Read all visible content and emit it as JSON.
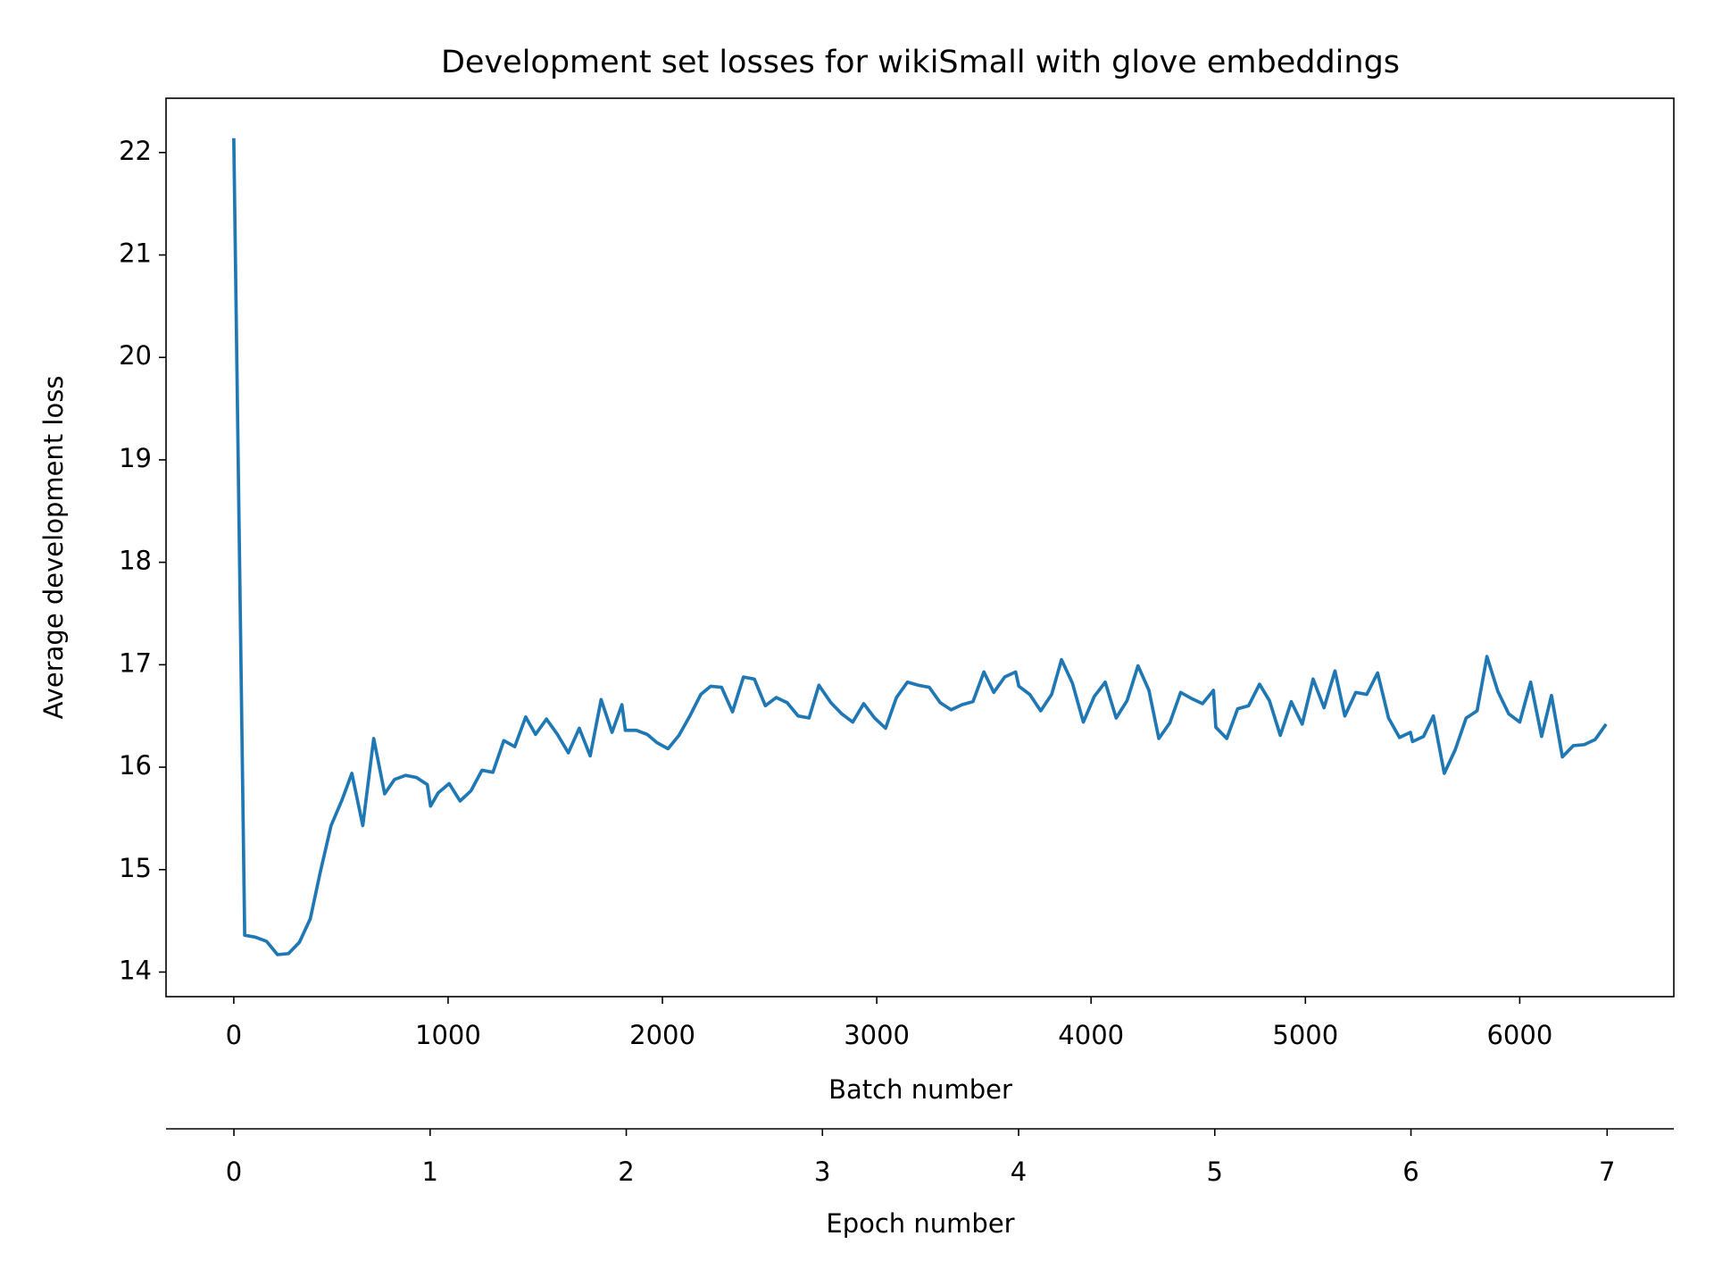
{
  "chart_data": {
    "type": "line",
    "title": "Development set losses for wikiSmall with glove embeddings",
    "x_label": "Batch number",
    "y_label": "Average development loss",
    "x2_label": "Epoch number",
    "x": [
      0,
      51,
      102,
      153,
      204,
      255,
      306,
      357,
      403,
      454,
      505,
      551,
      602,
      653,
      704,
      750,
      801,
      852,
      903,
      918,
      954,
      1005,
      1056,
      1107,
      1158,
      1209,
      1260,
      1311,
      1362,
      1408,
      1459,
      1510,
      1561,
      1612,
      1663,
      1714,
      1765,
      1811,
      1827,
      1878,
      1929,
      1974,
      2026,
      2077,
      2128,
      2179,
      2225,
      2276,
      2327,
      2378,
      2429,
      2480,
      2531,
      2582,
      2633,
      2684,
      2730,
      2786,
      2837,
      2888,
      2939,
      2990,
      3041,
      3092,
      3143,
      3194,
      3245,
      3296,
      3347,
      3398,
      3449,
      3500,
      3546,
      3597,
      3648,
      3663,
      3714,
      3765,
      3816,
      3862,
      3913,
      3964,
      4015,
      4066,
      4117,
      4168,
      4219,
      4270,
      4316,
      4367,
      4418,
      4469,
      4520,
      4571,
      4582,
      4633,
      4684,
      4735,
      4786,
      4832,
      4883,
      4934,
      4985,
      5036,
      5087,
      5138,
      5184,
      5235,
      5286,
      5337,
      5388,
      5439,
      5490,
      5500,
      5551,
      5597,
      5648,
      5699,
      5750,
      5801,
      5847,
      5898,
      5949,
      6000,
      6051,
      6102,
      6148,
      6199,
      6250,
      6301,
      6352,
      6403
    ],
    "series": [
      {
        "name": "Development loss",
        "color": "#1f77b4",
        "values": [
          22.14,
          14.36,
          14.34,
          14.3,
          14.17,
          14.18,
          14.29,
          14.52,
          14.97,
          15.43,
          15.68,
          15.94,
          15.43,
          16.28,
          15.74,
          15.88,
          15.92,
          15.9,
          15.83,
          15.62,
          15.75,
          15.84,
          15.67,
          15.77,
          15.97,
          15.95,
          16.26,
          16.2,
          16.49,
          16.32,
          16.47,
          16.32,
          16.14,
          16.38,
          16.11,
          16.66,
          16.34,
          16.61,
          16.36,
          16.36,
          16.32,
          16.24,
          16.18,
          16.31,
          16.5,
          16.71,
          16.79,
          16.78,
          16.54,
          16.88,
          16.86,
          16.6,
          16.68,
          16.63,
          16.5,
          16.48,
          16.8,
          16.63,
          16.52,
          16.44,
          16.62,
          16.48,
          16.38,
          16.68,
          16.83,
          16.8,
          16.78,
          16.63,
          16.56,
          16.61,
          16.64,
          16.93,
          16.73,
          16.88,
          16.93,
          16.79,
          16.71,
          16.55,
          16.71,
          17.05,
          16.82,
          16.44,
          16.69,
          16.83,
          16.48,
          16.65,
          16.99,
          16.75,
          16.28,
          16.43,
          16.73,
          16.67,
          16.62,
          16.75,
          16.39,
          16.28,
          16.57,
          16.6,
          16.81,
          16.65,
          16.31,
          16.64,
          16.42,
          16.86,
          16.58,
          16.94,
          16.5,
          16.73,
          16.71,
          16.92,
          16.48,
          16.29,
          16.34,
          16.25,
          16.3,
          16.5,
          15.94,
          16.17,
          16.48,
          16.55,
          17.08,
          16.74,
          16.52,
          16.44,
          16.83,
          16.3,
          16.7,
          16.1,
          16.21,
          16.22,
          16.27,
          16.42
        ]
      }
    ],
    "xlim": [
      -316,
      6719
    ],
    "xticks": [
      0,
      1000,
      2000,
      3000,
      4000,
      5000,
      6000
    ],
    "ylim": [
      13.76,
      22.53
    ],
    "yticks": [
      14,
      15,
      16,
      17,
      18,
      19,
      20,
      21,
      22
    ],
    "x2lim": [
      -0.346,
      7.34
    ],
    "x2ticks": [
      0,
      1,
      2,
      3,
      4,
      5,
      6,
      7
    ],
    "grid": false
  }
}
